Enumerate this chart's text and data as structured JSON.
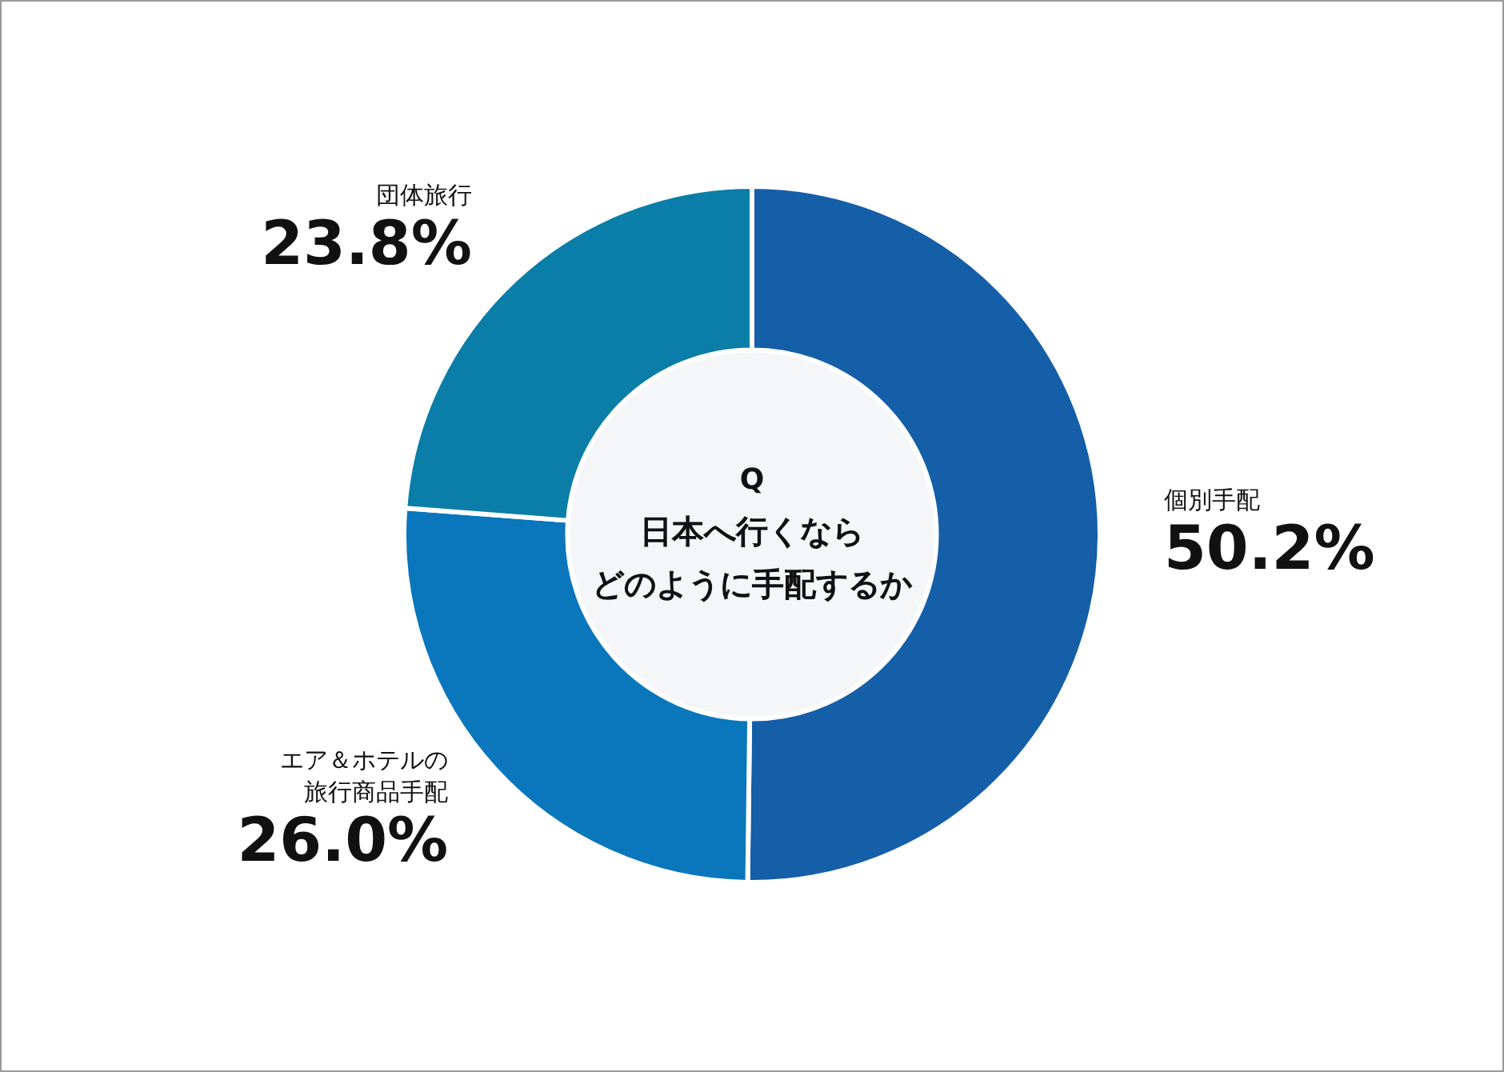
{
  "chart_data": {
    "type": "donut",
    "title": "Q",
    "subtitle": "日本へ行くなら",
    "annotations": [
      "どのように手配するか"
    ],
    "categories": [
      "個別手配",
      "エア＆ホテルの旅行商品手配",
      "団体旅行"
    ],
    "values": [
      50.2,
      26.0,
      23.8
    ],
    "colors": [
      "#155fa8",
      "#0a77bc",
      "#0a7ea8"
    ],
    "value_labels": [
      "50.2%",
      "26.0%",
      "23.8%"
    ],
    "legend": false
  }
}
